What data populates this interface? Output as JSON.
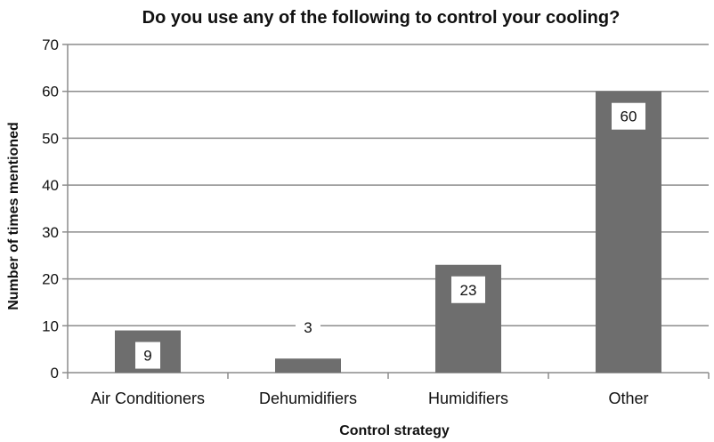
{
  "chart_data": {
    "type": "bar",
    "title": "Do you use any of the following to control your cooling?",
    "xlabel": "Control strategy",
    "ylabel": "Number of times mentioned",
    "categories": [
      "Air Conditioners",
      "Dehumidifiers",
      "Humidifiers",
      "Other"
    ],
    "values": [
      9,
      3,
      23,
      60
    ],
    "data_labels": [
      "9",
      "3",
      "23",
      "60"
    ],
    "ylim": [
      0,
      70
    ],
    "yticks": [
      0,
      10,
      20,
      30,
      40,
      50,
      60,
      70
    ],
    "ytick_labels": [
      "0",
      "10",
      "20",
      "30",
      "40",
      "50",
      "60",
      "70"
    ],
    "grid": true,
    "legend": "none",
    "colors": {
      "bar": "#6e6e6e",
      "gridline": "#8c8c8c",
      "axis": "#8c8c8c",
      "label_box": "#ffffff"
    }
  }
}
